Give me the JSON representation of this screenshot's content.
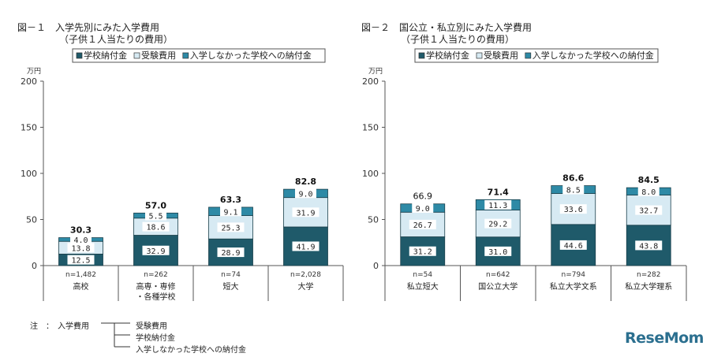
{
  "colors": {
    "school_payment": "#1f5a6a",
    "exam_fee": "#d7eaf3",
    "unentered_payment": "#2e8aa6"
  },
  "notes": {
    "label": "注　：　入学費用",
    "items": [
      "受験費用",
      "学校納付金",
      "入学しなかった学校への納付金"
    ]
  },
  "brand": "ReseMom",
  "chart_data": [
    {
      "type": "bar",
      "title": "図－１　入学先別にみた入学費用",
      "subtitle": "（子供１人当たりの費用）",
      "unit_label": "万円",
      "ylim": [
        0,
        200
      ],
      "yticks": [
        "0",
        "50",
        "100",
        "150",
        "200"
      ],
      "legend": [
        "学校納付金",
        "受験費用",
        "入学しなかった学校への納付金"
      ],
      "categories": [
        "高校",
        "高専・専修・各種学校",
        "短大",
        "大学"
      ],
      "category_lines": [
        [
          "高校"
        ],
        [
          "高専・専修",
          "・各種学校"
        ],
        [
          "短大"
        ],
        [
          "大学"
        ]
      ],
      "sample_sizes": [
        "n=1,482",
        "n=262",
        "n=74",
        "n=2,028"
      ],
      "series": [
        {
          "name": "学校納付金",
          "values": [
            12.5,
            32.9,
            28.9,
            41.9
          ],
          "labels": [
            "12.5",
            "32.9",
            "28.9",
            "41.9"
          ]
        },
        {
          "name": "受験費用",
          "values": [
            13.8,
            18.6,
            25.3,
            31.9
          ],
          "labels": [
            "13.8",
            "18.6",
            "25.3",
            "31.9"
          ]
        },
        {
          "name": "入学しなかった学校への納付金",
          "values": [
            4.0,
            5.5,
            9.1,
            9.0
          ],
          "labels": [
            "4.0",
            "5.5",
            "9.1",
            "9.0"
          ]
        }
      ],
      "totals": [
        "30.3",
        "57.0",
        "63.3",
        "82.8"
      ],
      "totals_bold": [
        true,
        true,
        true,
        true
      ]
    },
    {
      "type": "bar",
      "title": "図－２　国公立・私立別にみた入学費用",
      "subtitle": "（子供１人当たりの費用）",
      "unit_label": "万円",
      "ylim": [
        0,
        200
      ],
      "yticks": [
        "0",
        "50",
        "100",
        "150",
        "200"
      ],
      "legend": [
        "学校納付金",
        "受験費用",
        "入学しなかった学校への納付金"
      ],
      "categories": [
        "私立短大",
        "国公立大学",
        "私立大学文系",
        "私立大学理系"
      ],
      "category_lines": [
        [
          "私立短大"
        ],
        [
          "国公立大学"
        ],
        [
          "私立大学文系"
        ],
        [
          "私立大学理系"
        ]
      ],
      "sample_sizes": [
        "n=54",
        "n=642",
        "n=794",
        "n=282"
      ],
      "series": [
        {
          "name": "学校納付金",
          "values": [
            31.2,
            31.0,
            44.6,
            43.8
          ],
          "labels": [
            "31.2",
            "31.0",
            "44.6",
            "43.8"
          ]
        },
        {
          "name": "受験費用",
          "values": [
            26.7,
            29.2,
            33.6,
            32.7
          ],
          "labels": [
            "26.7",
            "29.2",
            "33.6",
            "32.7"
          ]
        },
        {
          "name": "入学しなかった学校への納付金",
          "values": [
            9.0,
            11.3,
            8.5,
            8.0
          ],
          "labels": [
            "9.0",
            "11.3",
            "8.5",
            "8.0"
          ]
        }
      ],
      "totals": [
        "66.9",
        "71.4",
        "86.6",
        "84.5"
      ],
      "totals_bold": [
        false,
        true,
        true,
        true
      ]
    }
  ]
}
